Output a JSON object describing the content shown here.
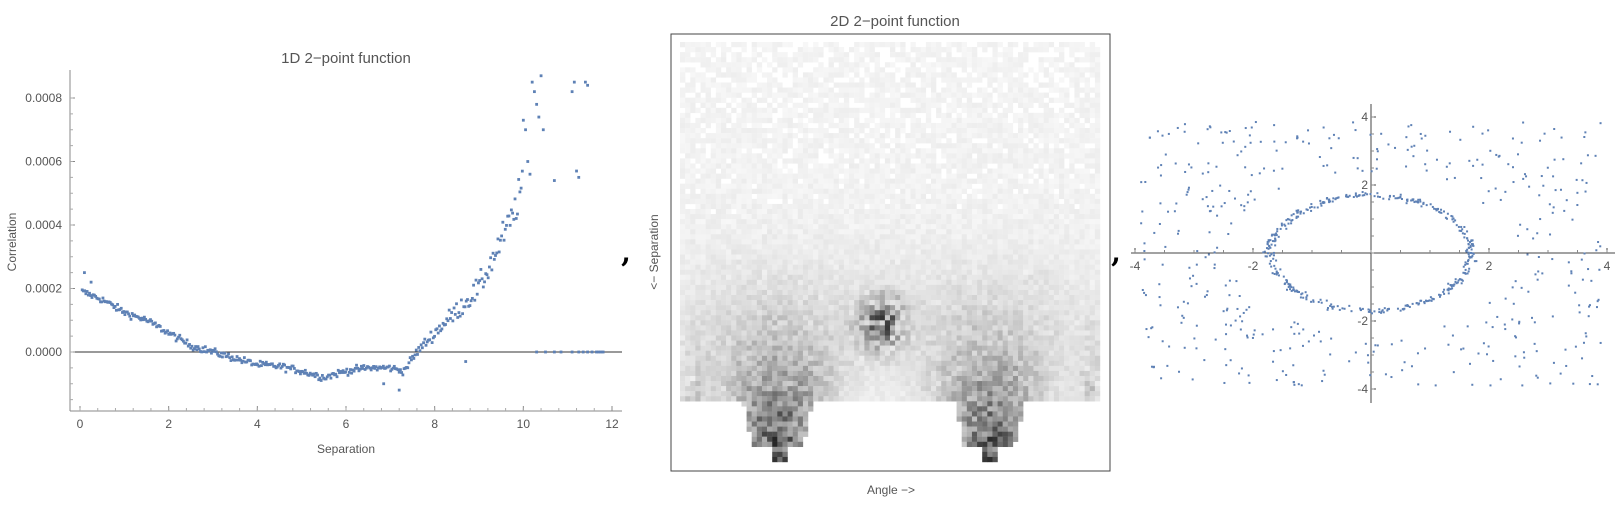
{
  "separator": ",",
  "chart_data": [
    {
      "type": "scatter",
      "title": "1D 2−point function",
      "xlabel": "Separation",
      "ylabel": "Correlation",
      "xlim": [
        0,
        12
      ],
      "ylim": [
        -0.00018,
        0.00088
      ],
      "xticks": [
        "0",
        "2",
        "4",
        "6",
        "8",
        "10",
        "12"
      ],
      "yticks": [
        "0.0000",
        "0.0002",
        "0.0004",
        "0.0006",
        "0.0008"
      ],
      "reference_line_y": 0,
      "color": "#5e81b5",
      "trend": [
        [
          0.05,
          0.00019
        ],
        [
          0.5,
          0.000165
        ],
        [
          1.0,
          0.000125
        ],
        [
          1.5,
          0.0001
        ],
        [
          2.0,
          6e-05
        ],
        [
          2.5,
          2e-05
        ],
        [
          3.0,
          0.0
        ],
        [
          3.5,
          -2e-05
        ],
        [
          4.0,
          -4e-05
        ],
        [
          4.5,
          -4.5e-05
        ],
        [
          5.0,
          -6e-05
        ],
        [
          5.5,
          -8e-05
        ],
        [
          6.0,
          -6e-05
        ],
        [
          6.5,
          -5e-05
        ],
        [
          7.0,
          -5e-05
        ],
        [
          7.3,
          -6e-05
        ],
        [
          7.6,
          0.0
        ],
        [
          8.0,
          6e-05
        ],
        [
          8.5,
          0.00013
        ],
        [
          9.0,
          0.0002
        ],
        [
          9.5,
          0.00035
        ],
        [
          9.8,
          0.00044
        ],
        [
          10.0,
          0.00055
        ]
      ],
      "outliers": [
        [
          0.1,
          0.00025
        ],
        [
          0.25,
          0.00022
        ],
        [
          10.0,
          0.00073
        ],
        [
          10.05,
          0.0007
        ],
        [
          10.1,
          0.0006
        ],
        [
          10.15,
          0.00056
        ],
        [
          10.2,
          0.00085
        ],
        [
          10.25,
          0.00082
        ],
        [
          10.3,
          0.00078
        ],
        [
          10.35,
          0.00074
        ],
        [
          10.4,
          0.00087
        ],
        [
          10.45,
          0.0007
        ],
        [
          10.7,
          0.00054
        ],
        [
          11.1,
          0.00082
        ],
        [
          11.15,
          0.00085
        ],
        [
          11.2,
          0.00057
        ],
        [
          11.25,
          0.00055
        ],
        [
          11.4,
          0.00085
        ],
        [
          11.45,
          0.00084
        ],
        [
          7.2,
          -0.00012
        ],
        [
          6.85,
          -0.0001
        ],
        [
          8.7,
          -3e-05
        ]
      ],
      "zero_points_x": [
        10.3,
        10.5,
        10.7,
        10.85,
        11.1,
        11.25,
        11.35,
        11.45,
        11.55,
        11.65,
        11.7,
        11.75,
        11.8
      ]
    },
    {
      "type": "heatmap",
      "title": "2D 2−point function",
      "xlabel": "Angle −>",
      "ylabel": "<− Separation",
      "cols": 82,
      "rows": 83,
      "colormap": "white-to-black",
      "lobes": [
        {
          "angle_fraction": 0.23,
          "apex_row_fraction": 0.95
        },
        {
          "angle_fraction": 0.74,
          "apex_row_fraction": 0.97
        }
      ]
    },
    {
      "type": "scatter",
      "xlim": [
        -4,
        4
      ],
      "ylim": [
        -4,
        4
      ],
      "xticks": [
        "-4",
        "-2",
        "2",
        "4"
      ],
      "yticks": [
        "4",
        "2",
        "-2",
        "-4"
      ],
      "color": "#5e81b5",
      "ring_radius_x": 1.7,
      "ring_radius_y": 1.7
    }
  ]
}
